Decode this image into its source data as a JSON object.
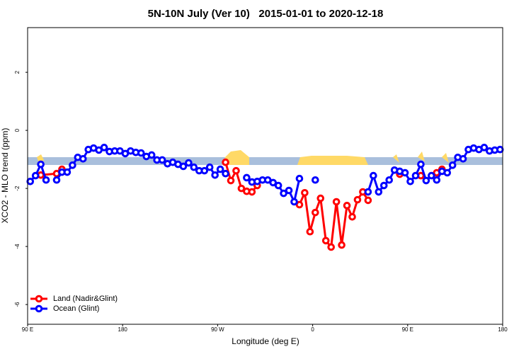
{
  "chart_data": {
    "type": "line",
    "title": "5N-10N July (Ver 10)   2015-01-01 to 2020-12-18",
    "x_label": "Longitude (deg E)",
    "y_label": "XCO2 - MLO trend (ppm)",
    "xlim": [
      90,
      540
    ],
    "xticks": [
      {
        "value": 90,
        "label": "90 E"
      },
      {
        "value": 180,
        "label": "180"
      },
      {
        "value": 270,
        "label": "90 W"
      },
      {
        "value": 360,
        "label": "0"
      },
      {
        "value": 450,
        "label": "90 E"
      },
      {
        "value": 540,
        "label": "180"
      }
    ],
    "ylim": [
      -6.68,
      3.54
    ],
    "yticks": [
      2,
      0,
      -2,
      -4,
      -6
    ],
    "legend": "lower left",
    "series": [
      {
        "name": "Land (Nadir&Glint)",
        "color": "#ff0000",
        "x": [
          102.5,
          117.5,
          122.5,
          127.5,
          277.5,
          282.5,
          287.5,
          292.5,
          297.5,
          302.5,
          307.5,
          312.5,
          347.5,
          352.5,
          357.5,
          362.5,
          367.5,
          372.5,
          377.5,
          382.5,
          387.5,
          392.5,
          397.5,
          402.5,
          407.5,
          412.5,
          417.5,
          442.5,
          447.5,
          462.5,
          467.5,
          477.5,
          482.5
        ],
        "values": [
          -1.54,
          -1.49,
          -1.34,
          null,
          -1.1,
          -1.73,
          -1.39,
          -2,
          -2.1,
          -2.12,
          -1.9,
          null,
          -2.56,
          -2.15,
          -3.49,
          -2.83,
          -2.34,
          -3.8,
          -4.02,
          -2.46,
          -3.95,
          -2.59,
          -2.98,
          -2.39,
          -2.12,
          -2.41,
          null,
          -1.51,
          null,
          -1.56,
          null,
          -1.46,
          -1.34
        ]
      },
      {
        "name": "Ocean (Glint)",
        "color": "#0000ff",
        "x": [
          92.5,
          97.5,
          102.5,
          107.5,
          112.5,
          117.5,
          122.5,
          127.5,
          132.5,
          137.5,
          142.5,
          147.5,
          152.5,
          157.5,
          162.5,
          167.5,
          172.5,
          177.5,
          182.5,
          187.5,
          192.5,
          197.5,
          202.5,
          207.5,
          212.5,
          217.5,
          222.5,
          227.5,
          232.5,
          237.5,
          242.5,
          247.5,
          252.5,
          257.5,
          262.5,
          267.5,
          272.5,
          277.5,
          282.5,
          297.5,
          302.5,
          307.5,
          312.5,
          317.5,
          322.5,
          327.5,
          332.5,
          337.5,
          342.5,
          347.5,
          352.5,
          362.5,
          367.5,
          412.5,
          417.5,
          422.5,
          427.5,
          432.5,
          437.5,
          442.5,
          447.5,
          452.5,
          457.5,
          462.5,
          467.5,
          472.5,
          477.5,
          482.5,
          487.5,
          492.5,
          497.5,
          502.5,
          507.5,
          512.5,
          517.5,
          522.5,
          527.5,
          532.5,
          537.5
        ],
        "values": [
          -1.76,
          -1.56,
          -1.17,
          -1.71,
          null,
          -1.71,
          -1.44,
          -1.44,
          -1.2,
          -0.93,
          -0.98,
          -0.66,
          -0.61,
          -0.68,
          -0.59,
          -0.73,
          -0.71,
          -0.71,
          -0.8,
          -0.71,
          -0.76,
          -0.78,
          -0.9,
          -0.85,
          -1.02,
          -1.02,
          -1.15,
          -1.1,
          -1.17,
          -1.24,
          -1.12,
          -1.27,
          -1.39,
          -1.39,
          -1.27,
          -1.54,
          -1.34,
          -1.49,
          null,
          -1.63,
          -1.78,
          -1.76,
          -1.71,
          -1.71,
          -1.8,
          -1.9,
          -2.17,
          -2.07,
          -2.46,
          -1.66,
          null,
          -1.71,
          null,
          -2.12,
          -1.56,
          -2.12,
          -1.9,
          -1.71,
          -1.37,
          -1.41,
          -1.46,
          -1.76,
          -1.56,
          -1.17,
          -1.73,
          -1.56,
          -1.71,
          -1.41,
          -1.46,
          -1.2,
          -0.93,
          -0.98,
          -0.66,
          -0.61,
          -0.66,
          -0.59,
          -0.71,
          -0.68,
          -0.66
        ]
      }
    ]
  }
}
